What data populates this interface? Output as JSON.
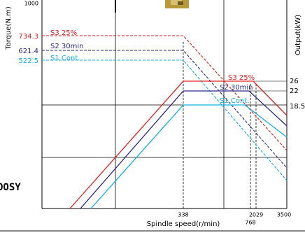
{
  "figure": {
    "y_axis_label": "Torque(N.m)",
    "y2_axis_label": "Output(kW)",
    "x_axis_label": "Spindle speed(r/min)",
    "y_top_label": "1000",
    "torque_labels": [
      "734.3",
      "621.4",
      "522.5"
    ],
    "output_labels": [
      "26",
      "22",
      "18.5"
    ],
    "speed_labels": [
      "338",
      "2029",
      "3500",
      "768"
    ],
    "torque_curve_names": [
      "S3 25%",
      "S2 30min",
      "S1 Cont."
    ],
    "output_curve_names": [
      "S3 25%",
      "S2 30min",
      "S1 Cont."
    ],
    "side_text": "OOSY"
  }
}
